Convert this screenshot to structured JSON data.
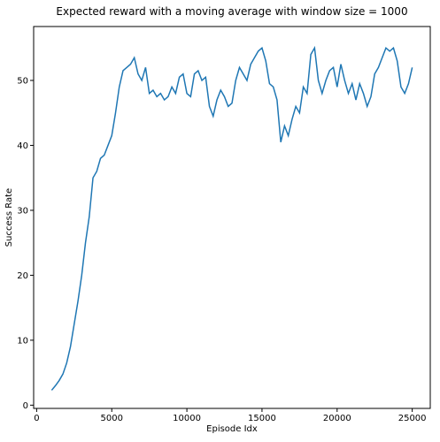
{
  "chart_data": {
    "type": "line",
    "title": "Expected reward with a moving average with window size = 1000",
    "x_label": "Episode Idx",
    "y_label": "Success Rate",
    "x": [
      1000,
      1250,
      1500,
      1750,
      2000,
      2250,
      2500,
      2750,
      3000,
      3250,
      3500,
      3750,
      4000,
      4250,
      4500,
      4750,
      5000,
      5250,
      5500,
      5750,
      6000,
      6250,
      6500,
      6750,
      7000,
      7250,
      7500,
      7750,
      8000,
      8250,
      8500,
      8750,
      9000,
      9250,
      9500,
      9750,
      10000,
      10250,
      10500,
      10750,
      11000,
      11250,
      11500,
      11750,
      12000,
      12250,
      12500,
      12750,
      13000,
      13250,
      13500,
      13750,
      14000,
      14250,
      14500,
      14750,
      15000,
      15250,
      15500,
      15750,
      16000,
      16250,
      16500,
      16750,
      17000,
      17250,
      17500,
      17750,
      18000,
      18250,
      18500,
      18750,
      19000,
      19250,
      19500,
      19750,
      20000,
      20250,
      20500,
      20750,
      21000,
      21250,
      21500,
      21750,
      22000,
      22250,
      22500,
      22750,
      23000,
      23250,
      23500,
      23750,
      24000,
      24250,
      24500,
      24750,
      25000
    ],
    "series": [
      {
        "color": "#1f77b4",
        "values": [
          2.3,
          3,
          3.8,
          4.8,
          6.5,
          9,
          12.5,
          16,
          20,
          25,
          29,
          35,
          36,
          38,
          38.5,
          40,
          41.5,
          45,
          49,
          51.5,
          52,
          52.5,
          53.5,
          51,
          50,
          52,
          48,
          48.5,
          47.5,
          48,
          47,
          47.5,
          49,
          48,
          50.5,
          51,
          48,
          47.5,
          51,
          51.5,
          50,
          50.5,
          46,
          44.5,
          47,
          48.5,
          47.5,
          46,
          46.5,
          50,
          52,
          51,
          50,
          52.5,
          53.5,
          54.5,
          55,
          53,
          49.5,
          49,
          47,
          40.5,
          43,
          41.5,
          44,
          46,
          45,
          49,
          48,
          54,
          55,
          50,
          48,
          50,
          51.5,
          52,
          49,
          52.5,
          50,
          48,
          49.5,
          47,
          49.5,
          48,
          46,
          47.5,
          51,
          52,
          53.5,
          55,
          54.5,
          55,
          53,
          49,
          48,
          49.5,
          52
        ]
      }
    ],
    "xlim": [
      -200,
      26200
    ],
    "xticks": [
      0,
      5000,
      10000,
      15000,
      20000,
      25000
    ],
    "ylim": [
      -0.5,
      58.3
    ],
    "yticks": [
      0,
      10,
      20,
      30,
      40,
      50
    ]
  }
}
